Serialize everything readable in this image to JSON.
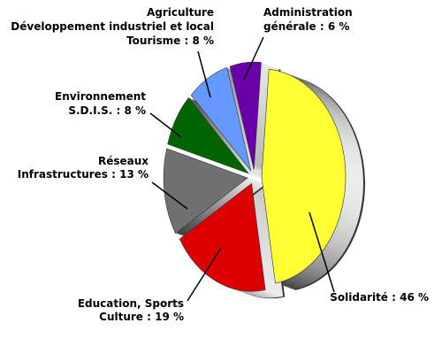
{
  "chart_data": {
    "type": "pie",
    "values": [
      46,
      19,
      13,
      8,
      8,
      6
    ],
    "value_labels": [
      [
        "Solidarité : 46 %"
      ],
      [
        "Education, Sports",
        "Culture : 19 %"
      ],
      [
        "Réseaux",
        "Infrastructures : 13 %"
      ],
      [
        "Environnement",
        "S.D.I.S. : 8 %"
      ],
      [
        "Agriculture",
        "Développement industriel et local",
        "Tourisme : 8 %"
      ],
      [
        "Administration",
        "générale : 6 %"
      ]
    ],
    "colors": [
      "#ffff33",
      "#dd0000",
      "#707070",
      "#006400",
      "#6699ff",
      "#6a00a8"
    ]
  }
}
